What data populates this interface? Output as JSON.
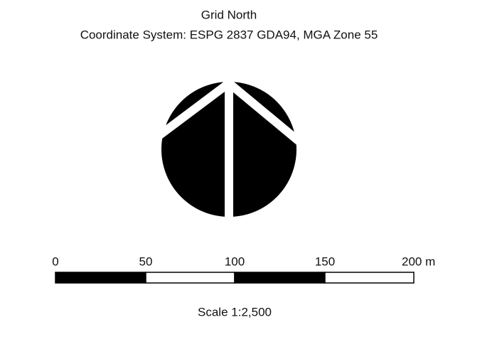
{
  "title": "Grid North",
  "subtitle": "Coordinate System: ESPG 2837 GDA94, MGA Zone 55",
  "scale_bar": {
    "labels": [
      "0",
      "50",
      "100",
      "150",
      "200 m"
    ]
  },
  "scale_text": "Scale 1:2,500"
}
